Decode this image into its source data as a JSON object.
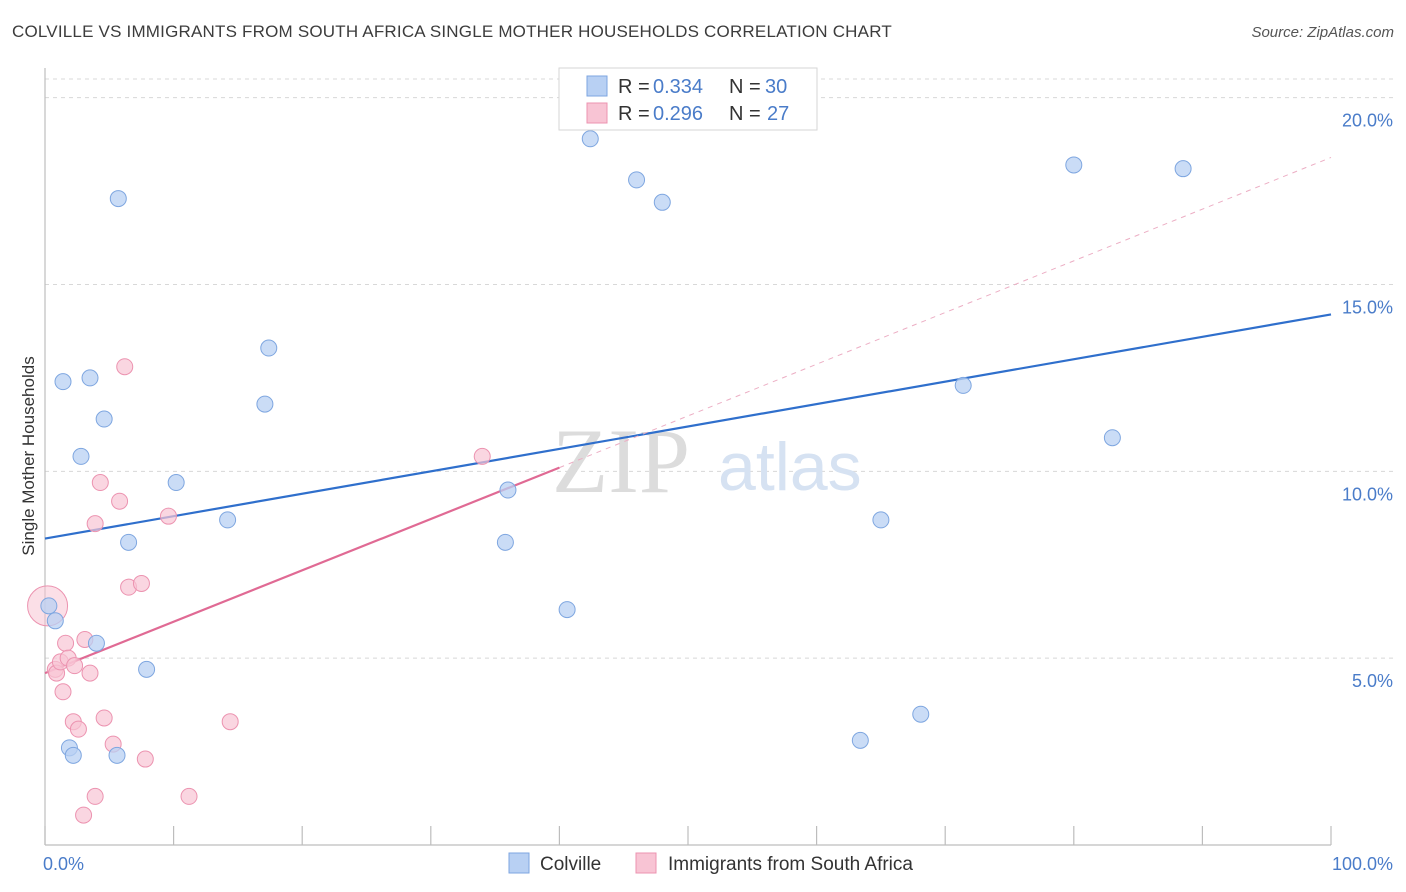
{
  "title": "COLVILLE VS IMMIGRANTS FROM SOUTH AFRICA SINGLE MOTHER HOUSEHOLDS CORRELATION CHART",
  "source": "Source: ZipAtlas.com",
  "watermark": {
    "zip": "ZIP",
    "atlas": "atlas"
  },
  "colors": {
    "blue_fill": "#b8d0f3",
    "blue_stroke": "#7ea6e0",
    "blue_line": "#2f6fcc",
    "pink_fill": "#f8c4d4",
    "pink_stroke": "#ec93b0",
    "pink_line": "#e06a94",
    "label_blue": "#4a7cc9",
    "grid": "#d8d8d8"
  },
  "legend": {
    "r_label": "R =",
    "n_label": "N =",
    "series": [
      {
        "r": "0.334",
        "n": "30"
      },
      {
        "r": "0.296",
        "n": "27"
      }
    ]
  },
  "chart_data": {
    "type": "scatter",
    "title": "COLVILLE VS IMMIGRANTS FROM SOUTH AFRICA SINGLE MOTHER HOUSEHOLDS CORRELATION CHART",
    "xlabel": "",
    "ylabel": "Single Mother Households",
    "xlim": [
      0,
      100
    ],
    "ylim": [
      0,
      20.5
    ],
    "x_tick_labels": [
      {
        "value": 0,
        "label": "0.0%"
      },
      {
        "value": 100,
        "label": "100.0%"
      }
    ],
    "y_tick_labels": [
      {
        "value": 5,
        "label": "5.0%"
      },
      {
        "value": 10,
        "label": "10.0%"
      },
      {
        "value": 15,
        "label": "15.0%"
      },
      {
        "value": 20,
        "label": "20.0%"
      }
    ],
    "series": [
      {
        "name": "Colville",
        "r": 0.334,
        "n": 30,
        "trend": {
          "x0": 0,
          "y0": 8.2,
          "x1": 100,
          "y1": 14.2,
          "dashed_extension": false
        },
        "points": [
          {
            "x": 0.3,
            "y": 6.4
          },
          {
            "x": 0.8,
            "y": 6.0
          },
          {
            "x": 1.4,
            "y": 12.4
          },
          {
            "x": 2.8,
            "y": 10.4
          },
          {
            "x": 3.5,
            "y": 12.5
          },
          {
            "x": 4.6,
            "y": 11.4
          },
          {
            "x": 5.7,
            "y": 17.3
          },
          {
            "x": 6.5,
            "y": 8.1
          },
          {
            "x": 10.2,
            "y": 9.7
          },
          {
            "x": 14.2,
            "y": 8.7
          },
          {
            "x": 17.1,
            "y": 11.8
          },
          {
            "x": 17.4,
            "y": 13.3
          },
          {
            "x": 4.0,
            "y": 5.4
          },
          {
            "x": 7.9,
            "y": 4.7
          },
          {
            "x": 1.9,
            "y": 2.6
          },
          {
            "x": 2.2,
            "y": 2.4
          },
          {
            "x": 5.6,
            "y": 2.4
          },
          {
            "x": 35.8,
            "y": 8.1
          },
          {
            "x": 36.0,
            "y": 9.5
          },
          {
            "x": 40.6,
            "y": 6.3
          },
          {
            "x": 42.4,
            "y": 18.9
          },
          {
            "x": 46.0,
            "y": 17.8
          },
          {
            "x": 48.0,
            "y": 17.2
          },
          {
            "x": 63.4,
            "y": 2.8
          },
          {
            "x": 65.0,
            "y": 8.7
          },
          {
            "x": 68.1,
            "y": 3.5
          },
          {
            "x": 71.4,
            "y": 12.3
          },
          {
            "x": 80.0,
            "y": 18.2
          },
          {
            "x": 83.0,
            "y": 10.9
          },
          {
            "x": 88.5,
            "y": 18.1
          }
        ]
      },
      {
        "name": "Immigrants from South Africa",
        "r": 0.296,
        "n": 27,
        "trend": {
          "x0": 0,
          "y0": 4.6,
          "x1": 40,
          "y1": 10.1,
          "dashed_x1": 100,
          "dashed_y1": 18.4,
          "dashed_extension": true
        },
        "points": [
          {
            "x": 0.2,
            "y": 6.4,
            "large": true
          },
          {
            "x": 0.8,
            "y": 4.7
          },
          {
            "x": 0.9,
            "y": 4.6
          },
          {
            "x": 1.2,
            "y": 4.9
          },
          {
            "x": 1.4,
            "y": 4.1
          },
          {
            "x": 1.6,
            "y": 5.4
          },
          {
            "x": 1.8,
            "y": 5.0
          },
          {
            "x": 2.2,
            "y": 3.3
          },
          {
            "x": 2.3,
            "y": 4.8
          },
          {
            "x": 2.6,
            "y": 3.1
          },
          {
            "x": 3.0,
            "y": 0.8
          },
          {
            "x": 3.1,
            "y": 5.5
          },
          {
            "x": 3.5,
            "y": 4.6
          },
          {
            "x": 3.9,
            "y": 8.6
          },
          {
            "x": 3.9,
            "y": 1.3
          },
          {
            "x": 4.3,
            "y": 9.7
          },
          {
            "x": 4.6,
            "y": 3.4
          },
          {
            "x": 5.3,
            "y": 2.7
          },
          {
            "x": 5.8,
            "y": 9.2
          },
          {
            "x": 6.2,
            "y": 12.8
          },
          {
            "x": 6.5,
            "y": 6.9
          },
          {
            "x": 7.5,
            "y": 7.0
          },
          {
            "x": 7.8,
            "y": 2.3
          },
          {
            "x": 9.6,
            "y": 8.8
          },
          {
            "x": 11.2,
            "y": 1.3
          },
          {
            "x": 14.4,
            "y": 3.3
          },
          {
            "x": 34.0,
            "y": 10.4
          }
        ]
      }
    ]
  }
}
